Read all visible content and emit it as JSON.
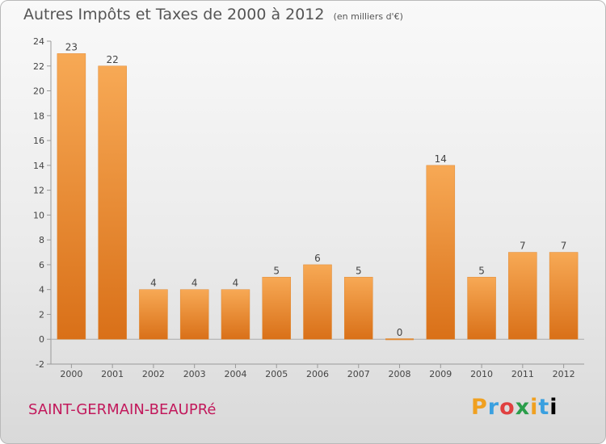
{
  "header": {
    "title": "Autres Impôts et Taxes de 2000 à 2012",
    "unit": "(en milliers d'€)"
  },
  "footer": {
    "city": "SAINT-GERMAIN-BEAUPRé",
    "logo": "Proxiti"
  },
  "colors": {
    "bar_top": "#f7a955",
    "bar_bottom": "#d97018",
    "accent": "#c2185b"
  },
  "chart_data": {
    "type": "bar",
    "categories": [
      "2000",
      "2001",
      "2002",
      "2003",
      "2004",
      "2005",
      "2006",
      "2007",
      "2008",
      "2009",
      "2010",
      "2011",
      "2012"
    ],
    "values": [
      23,
      22,
      4,
      4,
      4,
      5,
      6,
      5,
      0,
      14,
      5,
      7,
      7
    ],
    "title": "Autres Impôts et Taxes de 2000 à 2012",
    "xlabel": "",
    "ylabel": "",
    "ylim": [
      -2,
      24
    ],
    "yticks": [
      -2,
      0,
      2,
      4,
      6,
      8,
      10,
      12,
      14,
      16,
      18,
      20,
      22,
      24
    ],
    "grid": false,
    "data_labels": true
  }
}
